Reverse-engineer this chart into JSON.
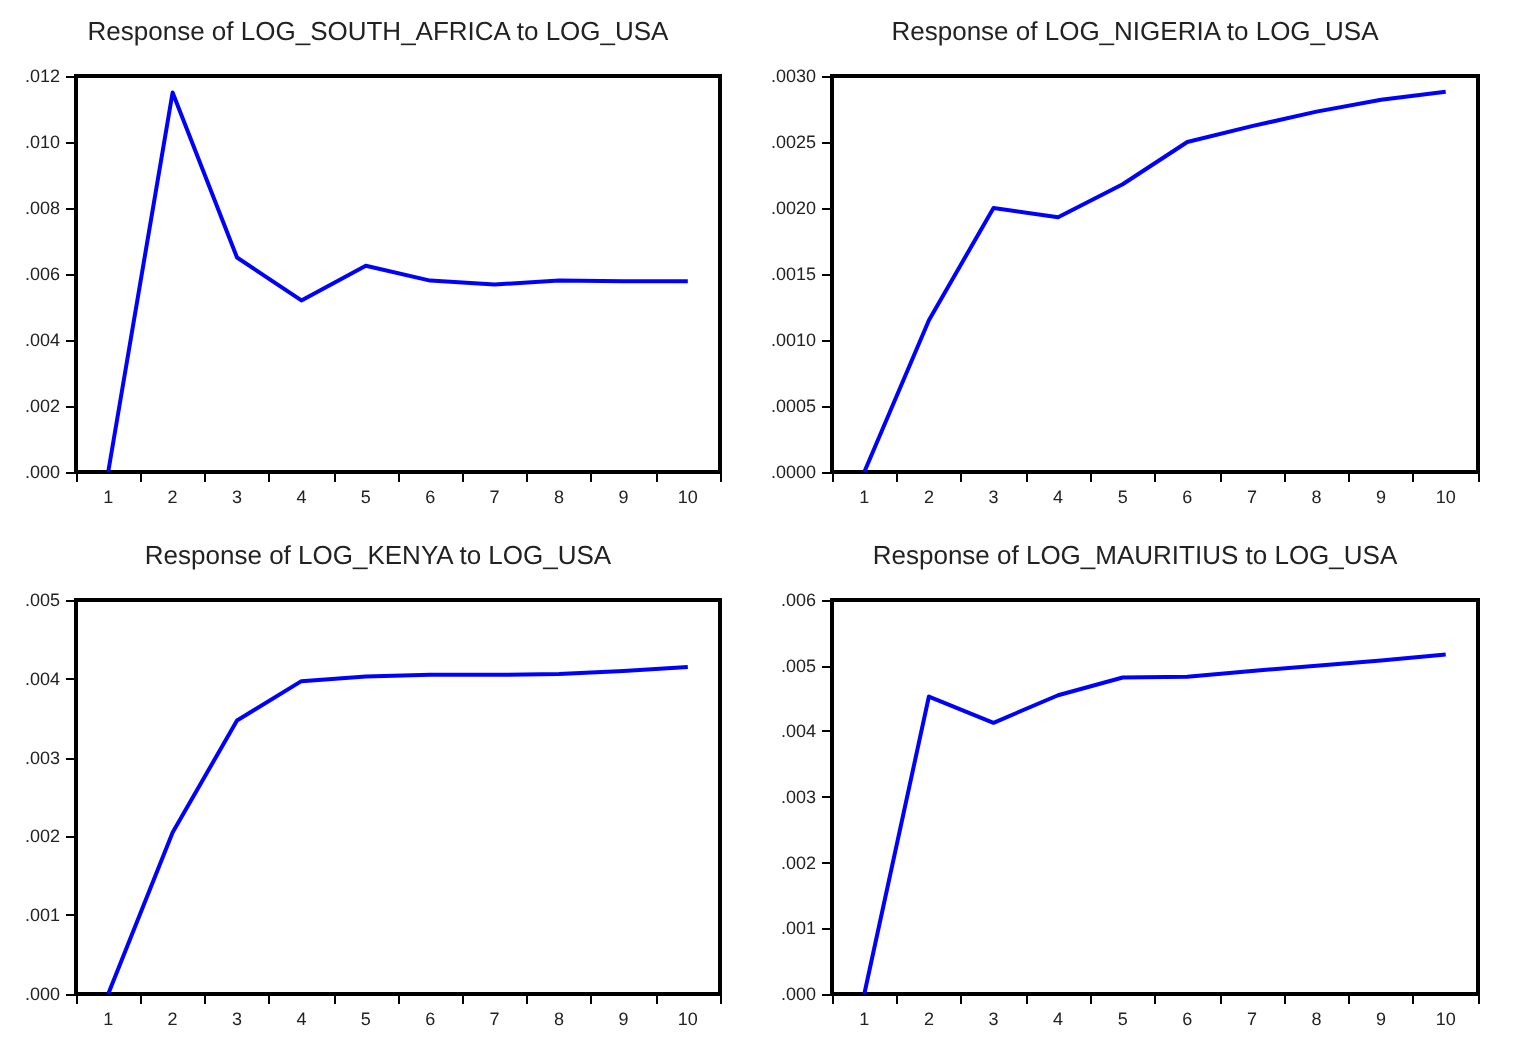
{
  "chart_data": [
    {
      "type": "line",
      "title": "Response of LOG_SOUTH_AFRICA to LOG_USA",
      "categories": [
        "1",
        "2",
        "3",
        "4",
        "5",
        "6",
        "7",
        "8",
        "9",
        "10"
      ],
      "series": [
        {
          "color": "#0000ff",
          "values": [
            0,
            0.0115,
            0.0065,
            0.0052,
            0.00625,
            0.0058,
            0.00568,
            0.0058,
            0.00578,
            0.00578
          ]
        }
      ],
      "ylim": [
        0,
        0.012
      ],
      "yticks": [
        {
          "value": 0,
          "label": ".000"
        },
        {
          "value": 0.002,
          "label": ".002"
        },
        {
          "value": 0.004,
          "label": ".004"
        },
        {
          "value": 0.006,
          "label": ".006"
        },
        {
          "value": 0.008,
          "label": ".008"
        },
        {
          "value": 0.01,
          "label": ".010"
        },
        {
          "value": 0.012,
          "label": ".012"
        }
      ],
      "grid": false,
      "marker": "none",
      "line_style": "solid"
    },
    {
      "type": "line",
      "title": "Response of LOG_NIGERIA to LOG_USA",
      "categories": [
        "1",
        "2",
        "3",
        "4",
        "5",
        "6",
        "7",
        "8",
        "9",
        "10"
      ],
      "series": [
        {
          "color": "#0000ff",
          "values": [
            0,
            0.00115,
            0.002,
            0.00193,
            0.00218,
            0.0025,
            0.00262,
            0.00273,
            0.00282,
            0.00288
          ]
        }
      ],
      "ylim": [
        0,
        0.003
      ],
      "yticks": [
        {
          "value": 0,
          "label": ".0000"
        },
        {
          "value": 0.0005,
          "label": ".0005"
        },
        {
          "value": 0.001,
          "label": ".0010"
        },
        {
          "value": 0.0015,
          "label": ".0015"
        },
        {
          "value": 0.002,
          "label": ".0020"
        },
        {
          "value": 0.0025,
          "label": ".0025"
        },
        {
          "value": 0.003,
          "label": ".0030"
        }
      ],
      "grid": false,
      "marker": "none",
      "line_style": "solid"
    },
    {
      "type": "line",
      "title": "Response of LOG_KENYA to LOG_USA",
      "categories": [
        "1",
        "2",
        "3",
        "4",
        "5",
        "6",
        "7",
        "8",
        "9",
        "10"
      ],
      "series": [
        {
          "color": "#0000ff",
          "values": [
            0,
            0.00205,
            0.00347,
            0.00397,
            0.00403,
            0.00405,
            0.00405,
            0.00406,
            0.0041,
            0.00415
          ]
        }
      ],
      "ylim": [
        0,
        0.005
      ],
      "yticks": [
        {
          "value": 0,
          "label": ".000"
        },
        {
          "value": 0.001,
          "label": ".001"
        },
        {
          "value": 0.002,
          "label": ".002"
        },
        {
          "value": 0.003,
          "label": ".003"
        },
        {
          "value": 0.004,
          "label": ".004"
        },
        {
          "value": 0.005,
          "label": ".005"
        }
      ],
      "grid": false,
      "marker": "none",
      "line_style": "solid"
    },
    {
      "type": "line",
      "title": "Response of LOG_MAURITIUS to LOG_USA",
      "categories": [
        "1",
        "2",
        "3",
        "4",
        "5",
        "6",
        "7",
        "8",
        "9",
        "10"
      ],
      "series": [
        {
          "color": "#0000ff",
          "values": [
            0,
            0.00453,
            0.00413,
            0.00455,
            0.00482,
            0.00483,
            0.00492,
            0.005,
            0.00508,
            0.00517
          ]
        }
      ],
      "ylim": [
        0,
        0.006
      ],
      "yticks": [
        {
          "value": 0,
          "label": ".000"
        },
        {
          "value": 0.001,
          "label": ".001"
        },
        {
          "value": 0.002,
          "label": ".002"
        },
        {
          "value": 0.003,
          "label": ".003"
        },
        {
          "value": 0.004,
          "label": ".004"
        },
        {
          "value": 0.005,
          "label": ".005"
        },
        {
          "value": 0.006,
          "label": ".006"
        }
      ],
      "grid": false,
      "marker": "none",
      "line_style": "solid"
    }
  ]
}
